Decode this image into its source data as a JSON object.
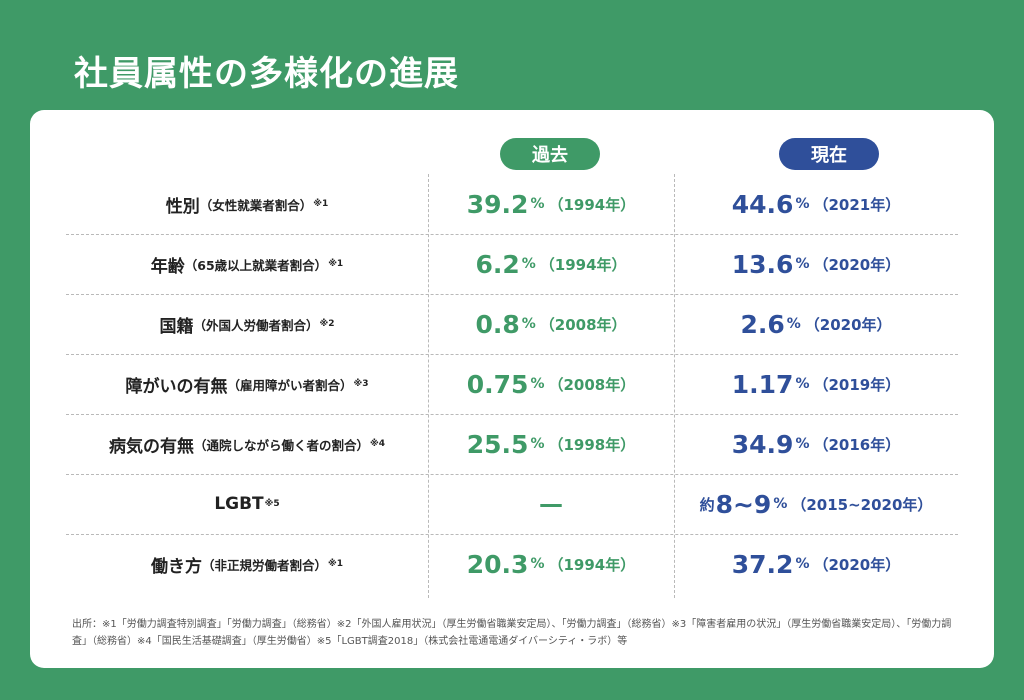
{
  "title": "社員属性の多様化の進展",
  "columns": {
    "past": "過去",
    "now": "現在"
  },
  "rows": [
    {
      "label": "性別",
      "sub": "（女性就業者割合）",
      "note": "※1",
      "past": {
        "value": "39.2",
        "unit": "%",
        "year": "（1994年）"
      },
      "now": {
        "prefix": "",
        "value": "44.6",
        "unit": "%",
        "year": "（2021年）"
      }
    },
    {
      "label": "年齢",
      "sub": "（65歳以上就業者割合）",
      "note": "※1",
      "past": {
        "value": "6.2",
        "unit": "%",
        "year": "（1994年）"
      },
      "now": {
        "prefix": "",
        "value": "13.6",
        "unit": "%",
        "year": "（2020年）"
      }
    },
    {
      "label": "国籍",
      "sub": "（外国人労働者割合）",
      "note": "※2",
      "past": {
        "value": "0.8",
        "unit": "%",
        "year": "（2008年）"
      },
      "now": {
        "prefix": "",
        "value": "2.6",
        "unit": "%",
        "year": "（2020年）"
      }
    },
    {
      "label": "障がいの有無",
      "sub": "（雇用障がい者割合）",
      "note": "※3",
      "past": {
        "value": "0.75",
        "unit": "%",
        "year": "（2008年）"
      },
      "now": {
        "prefix": "",
        "value": "1.17",
        "unit": "%",
        "year": "（2019年）"
      }
    },
    {
      "label": "病気の有無",
      "sub": "（通院しながら働く者の割合）",
      "note": "※4",
      "past": {
        "value": "25.5",
        "unit": "%",
        "year": "（1998年）"
      },
      "now": {
        "prefix": "",
        "value": "34.9",
        "unit": "%",
        "year": "（2016年）"
      }
    },
    {
      "label": "LGBT",
      "sub": "",
      "note": "※5",
      "past": {
        "dash": "—"
      },
      "now": {
        "prefix": "約",
        "value": "8~9",
        "unit": "%",
        "year": "（2015~2020年）"
      }
    },
    {
      "label": "働き方",
      "sub": "（非正規労働者割合）",
      "note": "※1",
      "past": {
        "value": "20.3",
        "unit": "%",
        "year": "（1994年）"
      },
      "now": {
        "prefix": "",
        "value": "37.2",
        "unit": "%",
        "year": "（2020年）"
      }
    }
  ],
  "source": "出所：※1「労働力調査特別調査」「労働力調査」（総務省）※2「外国人雇用状況」（厚生労働省職業安定局）、「労働力調査」（総務省）※3「障害者雇用の状況」（厚生労働省職業安定局）、「労働力調査」（総務省）※4「国民生活基礎調査」（厚生労働省）※5「LGBT調査2018」（株式会社電通電通ダイバーシティ・ラボ）等",
  "colors": {
    "background": "#3f9a67",
    "past": "#3f9a67",
    "now": "#2f4f9a"
  }
}
